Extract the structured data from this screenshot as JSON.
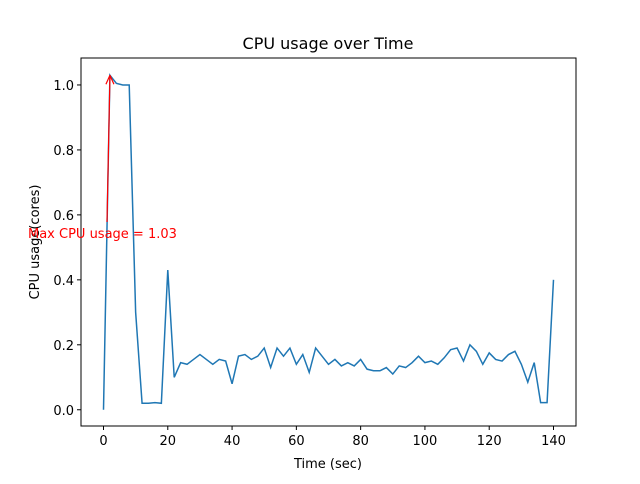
{
  "chart_data": {
    "type": "line",
    "title": "CPU usage over Time",
    "x_label": "Time (sec)",
    "y_label": "CPU usage(cores)",
    "annotation": "Max CPU usage = 1.03",
    "annotation_color": "#ff0000",
    "x": [
      0,
      2,
      4,
      6,
      8,
      10,
      12,
      14,
      16,
      18,
      20,
      22,
      24,
      26,
      28,
      30,
      32,
      34,
      36,
      38,
      40,
      42,
      44,
      46,
      48,
      50,
      52,
      54,
      56,
      58,
      60,
      62,
      64,
      66,
      68,
      70,
      72,
      74,
      76,
      78,
      80,
      82,
      84,
      86,
      88,
      90,
      92,
      94,
      96,
      98,
      100,
      102,
      104,
      106,
      108,
      110,
      112,
      114,
      116,
      118,
      120,
      122,
      124,
      126,
      128,
      130,
      132,
      134,
      136,
      138,
      140
    ],
    "series": [
      {
        "name": "CPU usage",
        "color": "#1f77b4",
        "values": [
          0.0,
          1.03,
          1.005,
          1.0,
          1.0,
          0.3,
          0.02,
          0.02,
          0.022,
          0.02,
          0.43,
          0.1,
          0.145,
          0.14,
          0.155,
          0.17,
          0.155,
          0.14,
          0.155,
          0.15,
          0.08,
          0.165,
          0.17,
          0.155,
          0.165,
          0.19,
          0.13,
          0.19,
          0.165,
          0.19,
          0.14,
          0.17,
          0.115,
          0.19,
          0.165,
          0.14,
          0.155,
          0.135,
          0.145,
          0.135,
          0.155,
          0.125,
          0.12,
          0.12,
          0.13,
          0.11,
          0.135,
          0.13,
          0.145,
          0.165,
          0.145,
          0.15,
          0.14,
          0.16,
          0.185,
          0.19,
          0.15,
          0.2,
          0.18,
          0.14,
          0.175,
          0.155,
          0.15,
          0.17,
          0.18,
          0.14,
          0.085,
          0.145,
          0.022,
          0.022,
          0.4
        ]
      }
    ],
    "xlim": [
      -7,
      147
    ],
    "ylim": [
      -0.05,
      1.083
    ],
    "xticks": [
      0,
      20,
      40,
      60,
      80,
      100,
      120,
      140
    ],
    "yticks": [
      {
        "value": 0,
        "label": "0.0"
      },
      {
        "value": 0.2,
        "label": "0.2"
      },
      {
        "value": 0.4,
        "label": "0.4"
      },
      {
        "value": 0.6,
        "label": "0.6"
      },
      {
        "value": 0.8,
        "label": "0.8"
      },
      {
        "value": 1,
        "label": "1.0"
      }
    ]
  }
}
